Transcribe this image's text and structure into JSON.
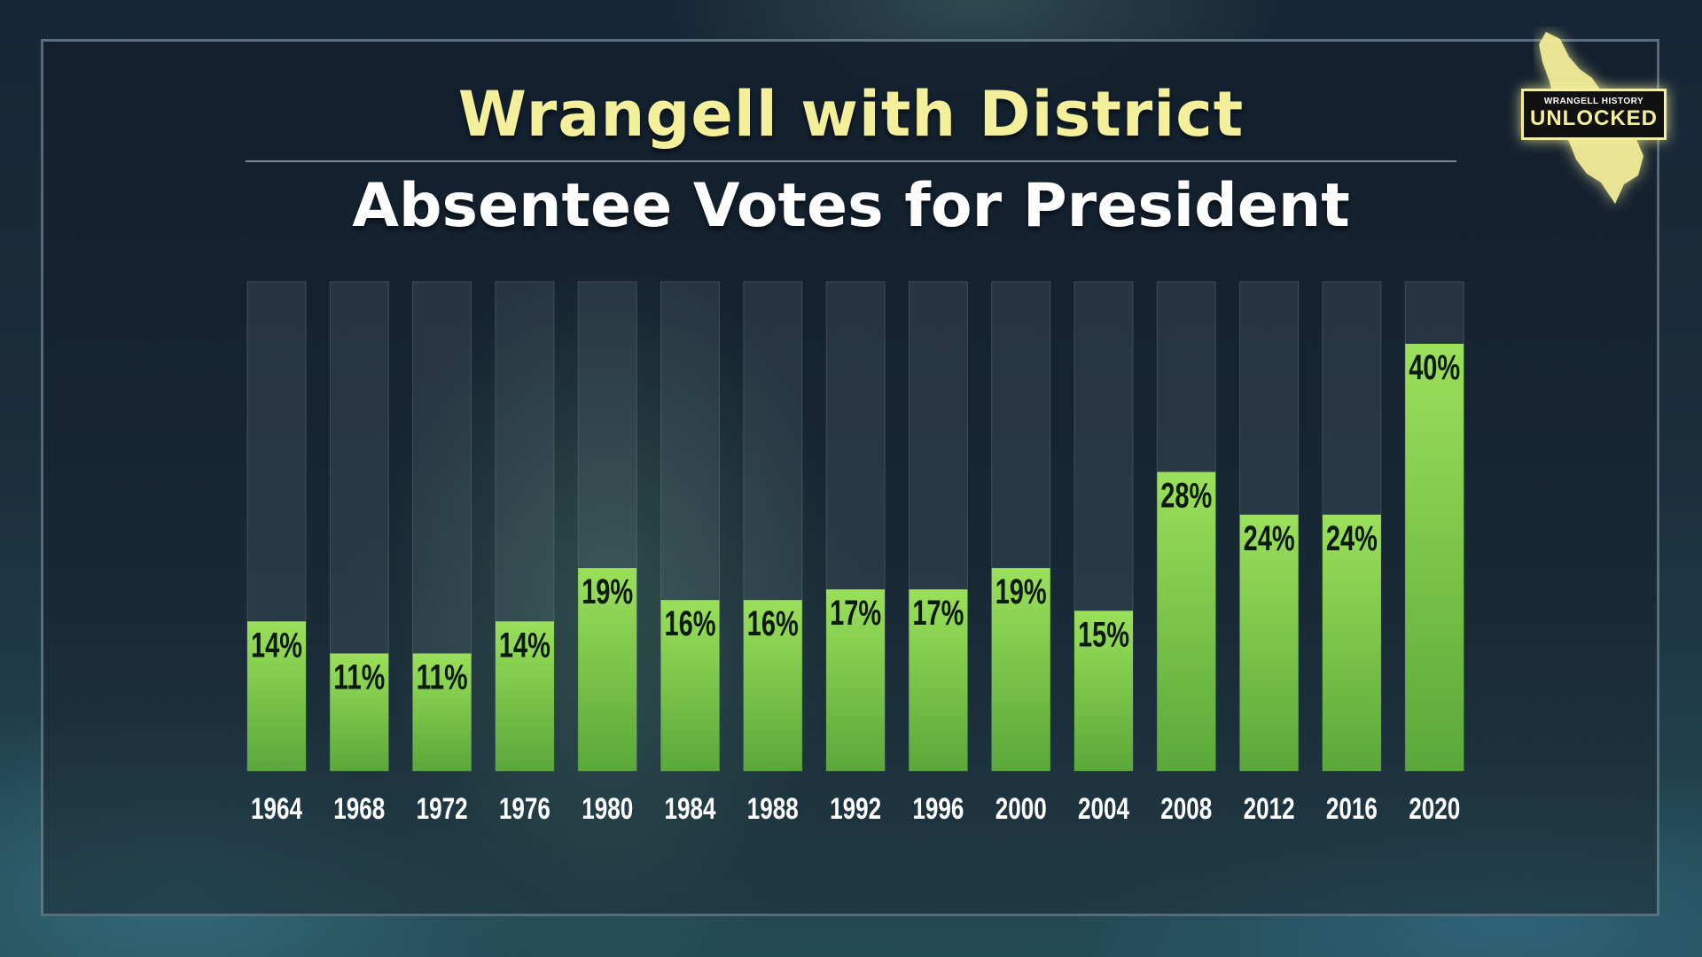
{
  "title": "Wrangell with District",
  "subtitle": "Absentee Votes for President",
  "badge": {
    "small_text": "WRANGELL HISTORY",
    "big_text": "UNLOCKED"
  },
  "colors": {
    "title": "#f4ef9a",
    "bar_fill_top": "#9be05a",
    "bar_fill_bottom": "#5aa83a",
    "bar_track": "#3a4a55"
  },
  "chart_data": {
    "type": "bar",
    "categories": [
      "1964",
      "1968",
      "1972",
      "1976",
      "1980",
      "1984",
      "1988",
      "1992",
      "1996",
      "2000",
      "2004",
      "2008",
      "2012",
      "2016",
      "2020"
    ],
    "values": [
      14,
      11,
      11,
      14,
      19,
      16,
      16,
      17,
      17,
      19,
      15,
      28,
      24,
      24,
      40
    ],
    "value_labels": [
      "14%",
      "11%",
      "11%",
      "14%",
      "19%",
      "16%",
      "16%",
      "17%",
      "17%",
      "19%",
      "15%",
      "28%",
      "24%",
      "24%",
      "40%"
    ],
    "title": "Wrangell with District",
    "subtitle": "Absentee Votes for President",
    "xlabel": "",
    "ylabel": "",
    "ylim": [
      0,
      100
    ],
    "grid": false,
    "legend": "none"
  }
}
